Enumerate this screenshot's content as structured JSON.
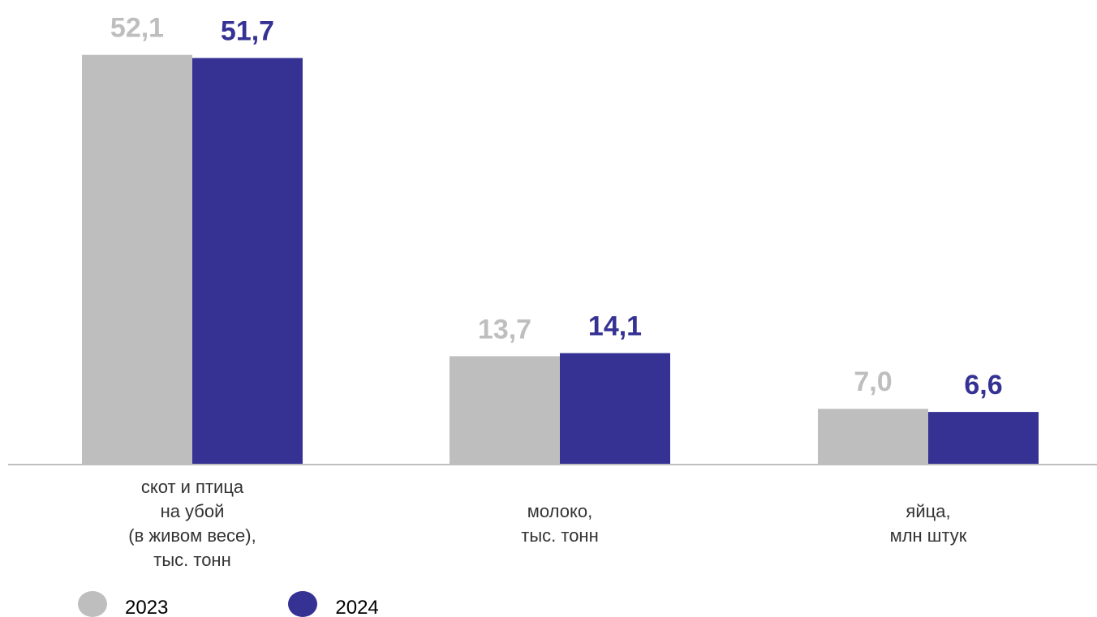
{
  "chart_data": {
    "type": "bar",
    "categories": [
      [
        "скот и птица",
        "на убой",
        "(в живом весе),",
        "тыс. тонн"
      ],
      [
        "молоко,",
        "тыс. тонн"
      ],
      [
        "яйца,",
        "млн штук"
      ]
    ],
    "series": [
      {
        "name": "2023",
        "values": [
          52.1,
          13.7,
          7.0
        ],
        "labels": [
          "52,1",
          "13,7",
          "7,0"
        ],
        "color": "#BEBEBE",
        "label_color": "#BEBEBE"
      },
      {
        "name": "2024",
        "values": [
          51.7,
          14.1,
          6.6
        ],
        "labels": [
          "51,7",
          "14,1",
          "6,6"
        ],
        "color": "#353294",
        "label_color": "#353294"
      }
    ],
    "ylim": [
      0,
      60
    ],
    "grid": false,
    "legend_position": "bottom-left",
    "axis_color": "#BEBEBE"
  }
}
